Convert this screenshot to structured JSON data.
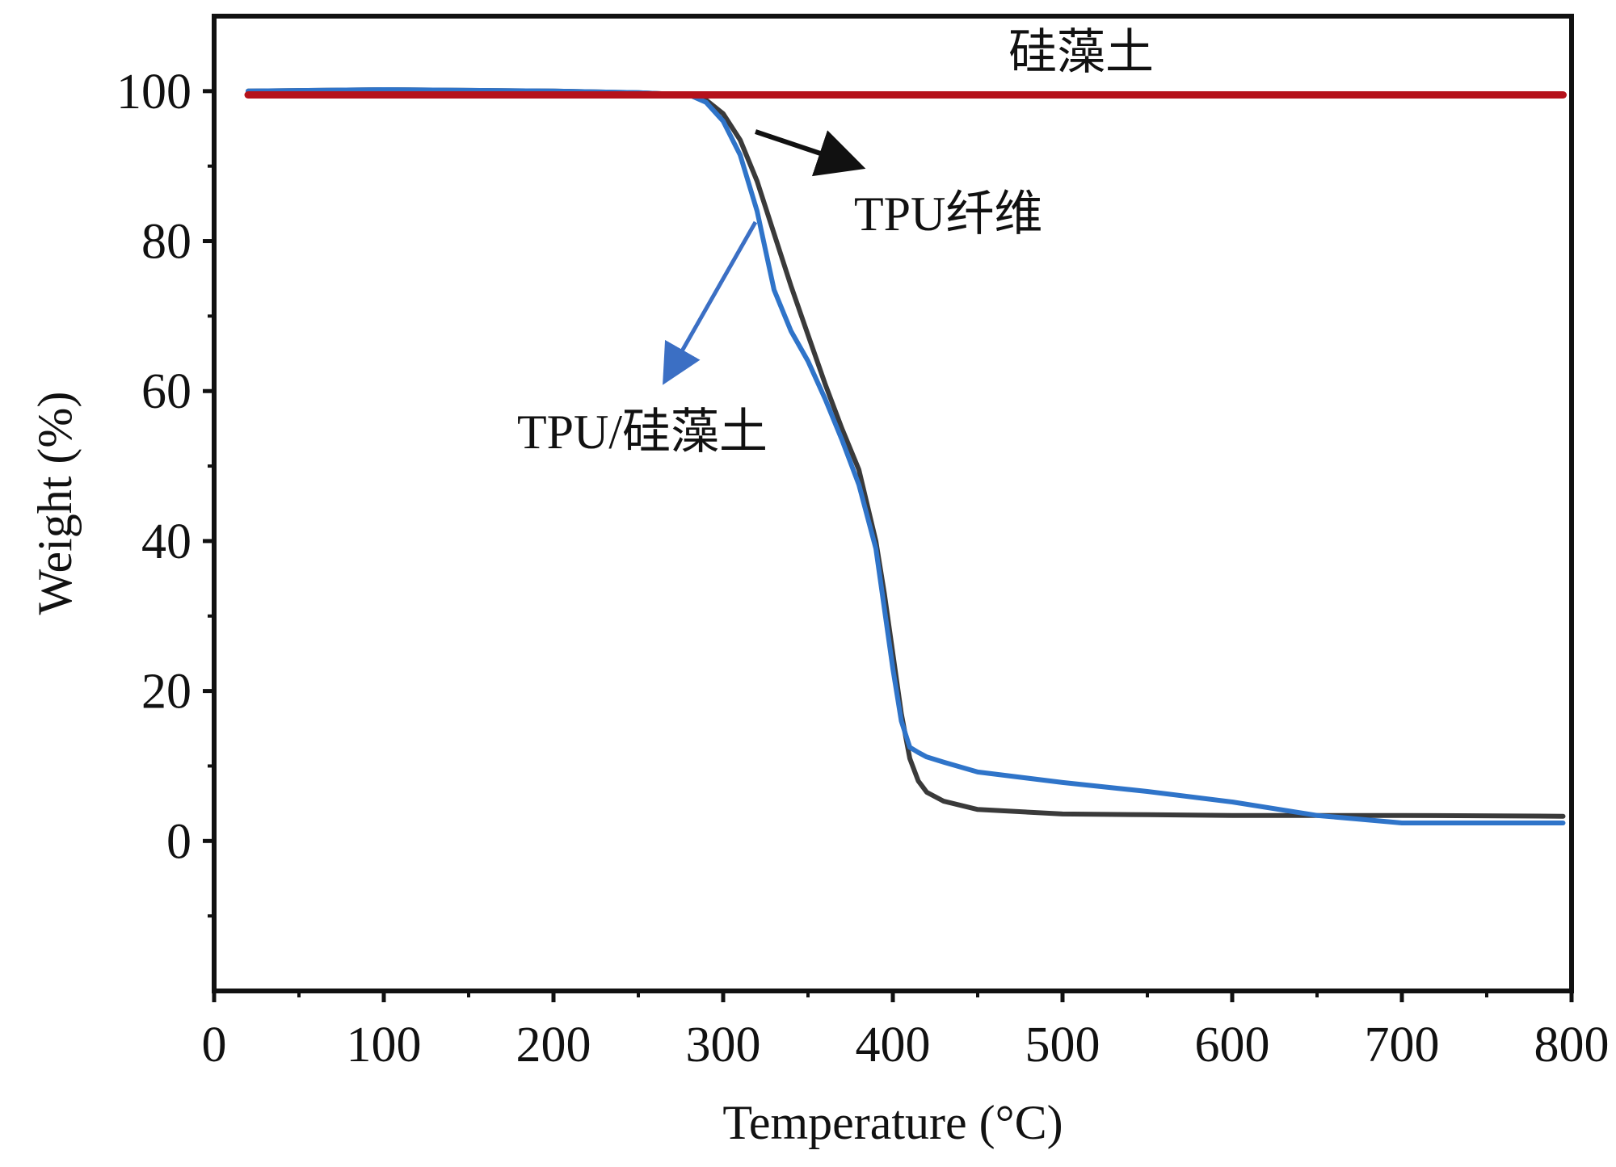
{
  "chart_data": {
    "type": "line",
    "title": "",
    "xlabel": "Temperature (°C)",
    "ylabel": "Weight (%)",
    "xlim": [
      0,
      800
    ],
    "ylim": [
      -20,
      110
    ],
    "xticks": [
      0,
      100,
      200,
      300,
      400,
      500,
      600,
      700,
      800
    ],
    "yticks": [
      0,
      20,
      40,
      60,
      80,
      100
    ],
    "grid": false,
    "legend": "none",
    "series": [
      {
        "name": "硅藻土",
        "color": "#b5121b",
        "x": [
          20,
          100,
          200,
          300,
          400,
          500,
          600,
          700,
          795
        ],
        "y": [
          99.5,
          99.5,
          99.5,
          99.5,
          99.5,
          99.5,
          99.5,
          99.5,
          99.5
        ]
      },
      {
        "name": "TPU纤维",
        "color": "#3a3a3a",
        "x": [
          20,
          100,
          200,
          250,
          280,
          290,
          300,
          310,
          320,
          330,
          340,
          350,
          360,
          370,
          380,
          390,
          395,
          400,
          405,
          410,
          415,
          420,
          430,
          450,
          500,
          550,
          600,
          650,
          700,
          795
        ],
        "y": [
          100,
          100.2,
          100,
          99.8,
          99.5,
          98.8,
          97,
          93.5,
          88,
          81,
          74,
          67.5,
          61,
          55,
          49.5,
          40,
          33,
          25,
          17,
          11,
          8,
          6.5,
          5.3,
          4.2,
          3.6,
          3.5,
          3.4,
          3.4,
          3.4,
          3.3
        ]
      },
      {
        "name": "TPU/硅藻土",
        "color": "#2f74c9",
        "x": [
          20,
          100,
          200,
          250,
          280,
          290,
          300,
          310,
          320,
          330,
          340,
          350,
          360,
          370,
          380,
          390,
          395,
          400,
          405,
          410,
          415,
          420,
          430,
          450,
          500,
          550,
          600,
          650,
          700,
          795
        ],
        "y": [
          100,
          100.2,
          100,
          99.8,
          99.5,
          98.5,
          96,
          91.5,
          84,
          73.5,
          68,
          64,
          59,
          53.5,
          47.5,
          39,
          31,
          23,
          16,
          12.5,
          11.8,
          11.2,
          10.5,
          9.2,
          7.8,
          6.6,
          5.2,
          3.4,
          2.4,
          2.4
        ]
      }
    ],
    "annotations": [
      {
        "text": "硅藻土"
      },
      {
        "text": "TPU纤维"
      },
      {
        "text": "TPU/硅藻土"
      }
    ]
  }
}
